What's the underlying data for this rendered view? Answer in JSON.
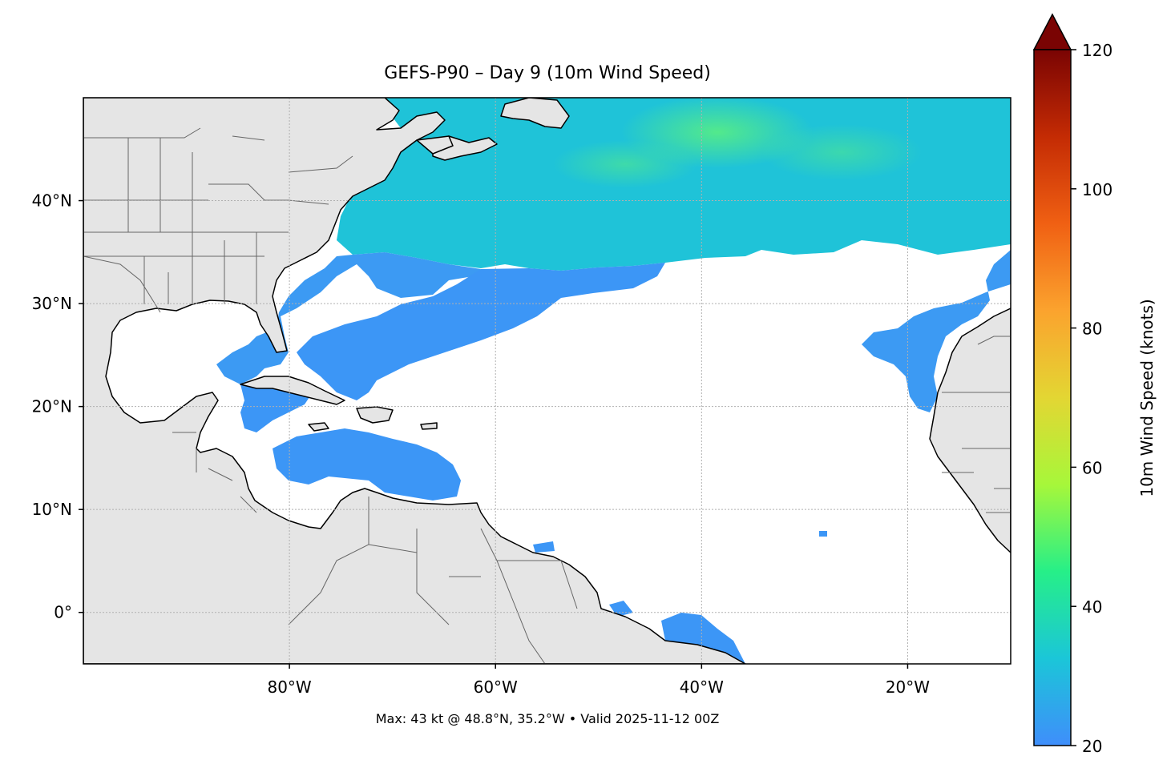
{
  "figure": {
    "title": "GEFS-P90 – Day 9 (10m Wind Speed)",
    "footer": "Max: 43 kt @ 48.8°N, 35.2°W • Valid 2025-11-12 00Z"
  },
  "map": {
    "extent": {
      "lon_min": -100,
      "lon_max": -10,
      "lat_min": -5,
      "lat_max": 50
    },
    "gridlines": true,
    "lon_ticks": [
      {
        "value": -80,
        "label": "80°W"
      },
      {
        "value": -60,
        "label": "60°W"
      },
      {
        "value": -40,
        "label": "40°W"
      },
      {
        "value": -20,
        "label": "20°W"
      }
    ],
    "lat_ticks": [
      {
        "value": 40,
        "label": "40°N"
      },
      {
        "value": 30,
        "label": "30°N"
      },
      {
        "value": 20,
        "label": "20°N"
      },
      {
        "value": 10,
        "label": "10°N"
      },
      {
        "value": 0,
        "label": "0°"
      }
    ],
    "colors": {
      "land": "#e5e5e5",
      "coast": "#000000",
      "borders": "#666666",
      "ocean": "#ffffff",
      "grid": "#b0b0b0"
    }
  },
  "colorbar": {
    "label": "10m Wind Speed (knots)",
    "min": 20,
    "max": 120,
    "extend": "max",
    "ticks": [
      {
        "value": 120,
        "label": "120"
      },
      {
        "value": 100,
        "label": "100"
      },
      {
        "value": 80,
        "label": "80"
      },
      {
        "value": 60,
        "label": "60"
      },
      {
        "value": 40,
        "label": "40"
      },
      {
        "value": 20,
        "label": "20"
      }
    ],
    "colormap": [
      "#3f8efb",
      "#1bc6d8",
      "#26ef88",
      "#a7f73a",
      "#e3d633",
      "#fba32e",
      "#f06013",
      "#c42b04",
      "#7a0403"
    ],
    "extend_color": "#7a0403"
  },
  "wind_field": {
    "threshold_kt": 20,
    "max_kt": 43,
    "max_location": {
      "lat": 48.8,
      "lon": -35.2
    }
  }
}
